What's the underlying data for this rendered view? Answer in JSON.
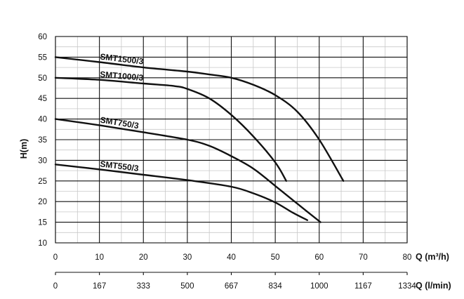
{
  "chart_data": {
    "type": "line",
    "ylabel": "H(m)",
    "xlabel_m3h": "Q (m³/h)",
    "xlabel_lmin": "Q (l/min)",
    "xlim": [
      0,
      80
    ],
    "ylim": [
      10,
      60
    ],
    "xticks": [
      0,
      10,
      20,
      30,
      40,
      50,
      60,
      70,
      80
    ],
    "yticks": [
      10,
      15,
      20,
      25,
      30,
      35,
      40,
      45,
      50,
      55,
      60
    ],
    "lmin_ticks": [
      "0",
      "167",
      "333",
      "500",
      "667",
      "834",
      "1000",
      "1167",
      "1334"
    ],
    "grid": true,
    "series": [
      {
        "name": "SMT1500/3",
        "x": [
          0,
          10,
          20,
          30,
          35,
          40,
          45,
          50,
          55,
          60,
          65.5
        ],
        "y": [
          55,
          53.8,
          52.5,
          51.5,
          50.8,
          50,
          48.3,
          45.8,
          41.8,
          35,
          25
        ]
      },
      {
        "name": "SMT1000/3",
        "x": [
          0,
          10,
          20,
          27,
          30,
          35,
          40,
          45,
          50,
          52.5
        ],
        "y": [
          50,
          49.5,
          48.6,
          48,
          47.3,
          45,
          41,
          35.8,
          29.5,
          25
        ]
      },
      {
        "name": "SMT750/3",
        "x": [
          0,
          10,
          20,
          30,
          35,
          40,
          45,
          50,
          55,
          60.3
        ],
        "y": [
          40,
          38.5,
          36.8,
          35,
          33.5,
          31,
          28,
          23.8,
          19.5,
          15
        ]
      },
      {
        "name": "SMT550/3",
        "x": [
          0,
          10,
          20,
          30,
          40,
          45,
          50,
          54,
          57.3
        ],
        "y": [
          29,
          27.8,
          26.5,
          25.2,
          23.6,
          22,
          19.8,
          17.3,
          15.5
        ]
      }
    ]
  }
}
